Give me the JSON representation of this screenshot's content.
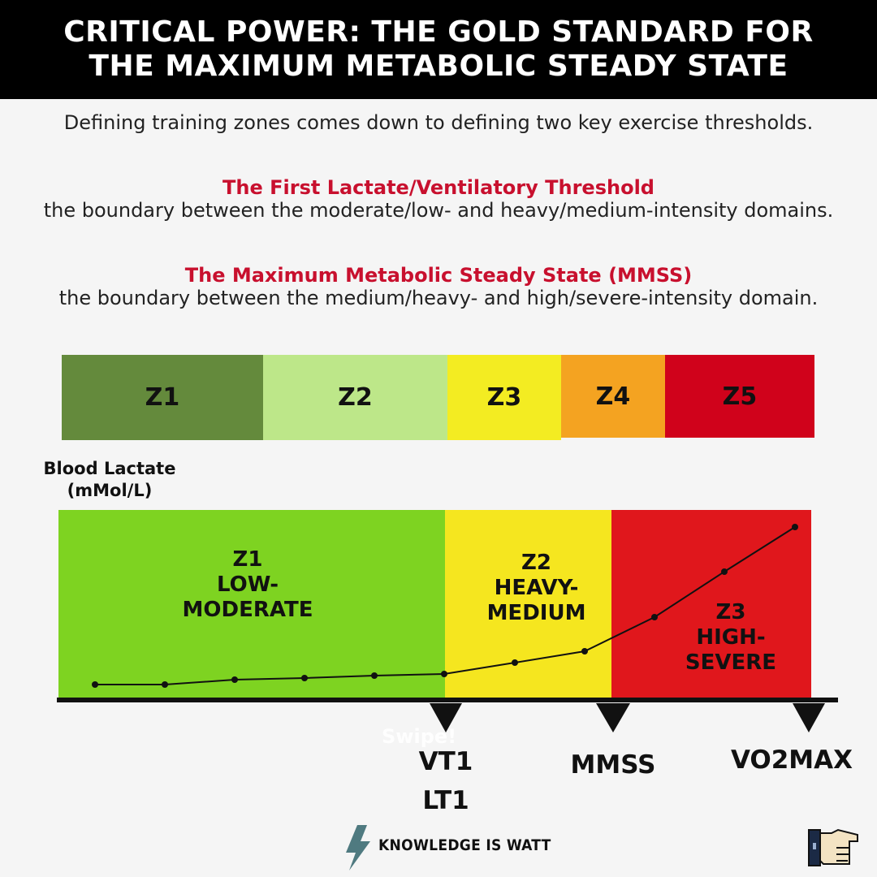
{
  "header": {
    "title_line1": "CRITICAL POWER: THE GOLD STANDARD FOR",
    "title_line2": "THE MAXIMUM METABOLIC STEADY STATE"
  },
  "intro": "Defining training zones comes down to defining two key exercise thresholds.",
  "thresholds": [
    {
      "title": "The First Lactate/Ventilatory Threshold",
      "description": "the boundary between the moderate/low- and heavy/medium-intensity domains."
    },
    {
      "title": "The Maximum Metabolic Steady State (MMSS)",
      "description": "the boundary between the medium/heavy- and high/severe-intensity domain."
    }
  ],
  "zone_bar": [
    {
      "label": "Z1",
      "color": "#648a3c"
    },
    {
      "label": "Z2",
      "color": "#bde789"
    },
    {
      "label": "Z3",
      "color": "#f3ec22"
    },
    {
      "label": "Z4",
      "color": "#f4a321"
    },
    {
      "label": "Z5",
      "color": "#d0021b"
    }
  ],
  "chart": {
    "y_label_line1": "Blood Lactate",
    "y_label_line2": "(mMol/L)",
    "regions": [
      {
        "line1": "Z1",
        "line2": "LOW-",
        "line3": "MODERATE",
        "color": "#7ed321"
      },
      {
        "line1": "Z2",
        "line2": "HEAVY-",
        "line3": "MEDIUM",
        "color": "#f5e61f"
      },
      {
        "line1": "Z3",
        "line2": "HIGH-",
        "line3": "SEVERE",
        "color": "#e0171c"
      }
    ],
    "markers": {
      "vt1_line1": "VT1",
      "vt1_line2": "LT1",
      "mmss": "MMSS",
      "vo2max": "VO2MAX"
    },
    "overlay_text": "Swipe!"
  },
  "footer": {
    "brand": "KNOWLEDGE IS WATT",
    "logo_icon": "lightning-bolt-icon",
    "next_icon": "pointing-hand-icon"
  }
}
